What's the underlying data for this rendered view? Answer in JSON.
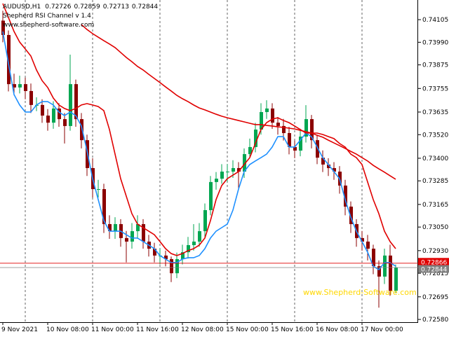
{
  "chart_data": {
    "type": "candlestick",
    "symbol": "AUDUSD,H1",
    "indicator": "Shepherd RSI Channel v 1.4",
    "website": "www.shepherd-software.com",
    "watermark": "www.Shepherd-Software.com",
    "open": [
      0.741,
      0.74027,
      0.73777,
      0.7376,
      0.73777,
      0.73742,
      0.73671,
      0.73671,
      0.73617,
      0.73581,
      0.73653,
      0.73599,
      0.73564,
      0.73777,
      0.73599,
      0.73492,
      0.7335,
      0.73243,
      0.73243,
      0.73065,
      0.73029,
      0.73065,
      0.72994,
      0.72976,
      0.73029,
      0.73065,
      0.72976,
      0.7294,
      0.72905,
      0.72905,
      0.72887,
      0.72815,
      0.72887,
      0.72922,
      0.72958,
      0.72976,
      0.73029,
      0.73136,
      0.73279,
      0.73296,
      0.73332,
      0.73332,
      0.7335,
      0.73332,
      0.73421,
      0.73457,
      0.73546,
      0.73635,
      0.73653,
      0.73581,
      0.73564,
      0.73528,
      0.73457,
      0.73439,
      0.7351,
      0.73599,
      0.73492,
      0.73403,
      0.73368,
      0.7335,
      0.73332,
      0.73261,
      0.73154,
      0.73065,
      0.72994,
      0.72976,
      0.7294,
      0.72851,
      0.72798,
      0.72905,
      0.72726
    ],
    "high": [
      0.7415,
      0.7405,
      0.7383,
      0.7382,
      0.7381,
      0.7378,
      0.7371,
      0.737,
      0.7365,
      0.7369,
      0.7368,
      0.7363,
      0.73927,
      0.738,
      0.7363,
      0.7352,
      0.734,
      0.7329,
      0.7327,
      0.7311,
      0.731,
      0.7309,
      0.7303,
      0.7307,
      0.7311,
      0.7309,
      0.7301,
      0.7297,
      0.7294,
      0.7293,
      0.729,
      0.7292,
      0.7296,
      0.73,
      0.73065,
      0.7307,
      0.7317,
      0.7331,
      0.7333,
      0.7337,
      0.7337,
      0.7339,
      0.7338,
      0.7345,
      0.735,
      0.7358,
      0.7368,
      0.73695,
      0.7368,
      0.7361,
      0.736,
      0.7356,
      0.7349,
      0.7355,
      0.7367,
      0.7362,
      0.7352,
      0.7344,
      0.734,
      0.7338,
      0.7336,
      0.7329,
      0.7318,
      0.7309,
      0.7303,
      0.7301,
      0.7296,
      0.7288,
      0.7294,
      0.7296,
      0.72859
    ],
    "low": [
      0.7399,
      0.7374,
      0.7372,
      0.7373,
      0.737,
      0.7363,
      0.7364,
      0.7358,
      0.7354,
      0.7355,
      0.7356,
      0.73475,
      0.7354,
      0.7356,
      0.7345,
      0.7331,
      0.732,
      0.732,
      0.7302,
      0.7299,
      0.7299,
      0.7295,
      0.7287,
      0.7294,
      0.7299,
      0.7294,
      0.729,
      0.7287,
      0.7286,
      0.7285,
      0.7277,
      0.7279,
      0.7286,
      0.7289,
      0.7293,
      0.7295,
      0.73,
      0.7311,
      0.7324,
      0.7327,
      0.7328,
      0.733,
      0.7324,
      0.733,
      0.734,
      0.7343,
      0.7352,
      0.736,
      0.7355,
      0.7352,
      0.7349,
      0.7342,
      0.734,
      0.7341,
      0.7348,
      0.7345,
      0.7337,
      0.7333,
      0.7331,
      0.7329,
      0.7322,
      0.7311,
      0.7302,
      0.7295,
      0.7293,
      0.7288,
      0.7281,
      0.7264,
      0.7276,
      0.727,
      0.72713
    ],
    "close": [
      0.74027,
      0.73777,
      0.7376,
      0.73777,
      0.73742,
      0.73671,
      0.73671,
      0.73617,
      0.73581,
      0.73653,
      0.73599,
      0.73564,
      0.73777,
      0.73599,
      0.73492,
      0.7335,
      0.73243,
      0.73243,
      0.73065,
      0.73029,
      0.73065,
      0.72994,
      0.72976,
      0.73029,
      0.73065,
      0.72976,
      0.7294,
      0.72905,
      0.72905,
      0.72887,
      0.72815,
      0.72887,
      0.72922,
      0.72958,
      0.72976,
      0.73029,
      0.73136,
      0.73279,
      0.73296,
      0.73332,
      0.73332,
      0.7335,
      0.73332,
      0.73421,
      0.73457,
      0.73546,
      0.73635,
      0.73653,
      0.73581,
      0.73564,
      0.73528,
      0.73457,
      0.73439,
      0.7351,
      0.73599,
      0.73492,
      0.73403,
      0.73368,
      0.7335,
      0.73332,
      0.73261,
      0.73154,
      0.73065,
      0.72994,
      0.72976,
      0.7294,
      0.72851,
      0.72798,
      0.72905,
      0.72726,
      0.72844
    ],
    "up_color": "#00a651",
    "down_color": "#8b0000",
    "lines": [
      {
        "color": "#1e90ff",
        "values": [
          0.74045,
          0.73884,
          0.73724,
          0.73671,
          0.73635,
          0.73635,
          0.73671,
          0.73688,
          0.73688,
          0.73671,
          0.73635,
          0.73617,
          0.73635,
          0.73617,
          0.73564,
          0.73439,
          0.73296,
          0.7319,
          0.73083,
          0.73029,
          0.73029,
          0.73029,
          0.73011,
          0.72994,
          0.72994,
          0.72976,
          0.72958,
          0.7294,
          0.72905,
          0.72887,
          0.72869,
          0.72869,
          0.72887,
          0.72894,
          0.72894,
          0.72905,
          0.7294,
          0.72994,
          0.73029,
          0.73047,
          0.73065,
          0.73136,
          0.73243,
          0.73332,
          0.73368,
          0.73386,
          0.73403,
          0.73421,
          0.73457,
          0.7351,
          0.7351,
          0.73457,
          0.73457,
          0.73492,
          0.73528,
          0.7351,
          0.73457,
          0.73403,
          0.73368,
          0.73332,
          0.73296,
          0.7319,
          0.731,
          0.73029,
          0.72976,
          0.72922,
          0.72851,
          0.72833,
          0.72869,
          0.72869,
          0.72851
        ]
      },
      {
        "color": "#e00000",
        "values": [
          0.74187,
          0.74116,
          0.74045,
          0.73991,
          0.73956,
          0.7392,
          0.73849,
          0.73795,
          0.7376,
          0.73706,
          0.73671,
          0.73653,
          0.73642,
          0.73653,
          0.73671,
          0.73678,
          0.73671,
          0.73663,
          0.73642,
          0.73546,
          0.73421,
          0.73296,
          0.73207,
          0.73118,
          0.73065,
          0.73047,
          0.73029,
          0.73011,
          0.72976,
          0.7294,
          0.72915,
          0.72905,
          0.72915,
          0.7293,
          0.7294,
          0.72958,
          0.72994,
          0.73083,
          0.7319,
          0.73261,
          0.73296,
          0.73314,
          0.73332,
          0.73368,
          0.73403,
          0.73475,
          0.73546,
          0.73581,
          0.73599,
          0.73606,
          0.73592,
          0.73581,
          0.73564,
          0.73546,
          0.73528,
          0.73528,
          0.73528,
          0.73521,
          0.7351,
          0.735,
          0.73475,
          0.73457,
          0.73421,
          0.73403,
          0.73368,
          0.73279,
          0.7319,
          0.73118,
          0.73029,
          0.72976,
          0.7294
        ]
      },
      {
        "color": "#e00000",
        "values": [
          null,
          null,
          null,
          null,
          null,
          null,
          null,
          null,
          null,
          null,
          null,
          null,
          null,
          null,
          0.7408,
          0.74055,
          0.74034,
          0.74016,
          0.73998,
          0.73981,
          0.73963,
          0.73938,
          0.73913,
          0.73891,
          0.73867,
          0.73849,
          0.73827,
          0.73806,
          0.73785,
          0.73763,
          0.73742,
          0.7372,
          0.73703,
          0.73688,
          0.73671,
          0.73656,
          0.73646,
          0.73635,
          0.73624,
          0.73614,
          0.73606,
          0.73599,
          0.73592,
          0.73585,
          0.73578,
          0.73571,
          0.73571,
          0.73567,
          0.73564,
          0.7356,
          0.73557,
          0.73553,
          0.73549,
          0.73542,
          0.73535,
          0.73528,
          0.73517,
          0.73507,
          0.73492,
          0.73478,
          0.73464,
          0.7345,
          0.73435,
          0.73421,
          0.73403,
          0.73386,
          0.73364,
          0.73346,
          0.73329,
          0.73311,
          0.73293
        ]
      }
    ],
    "price_lines": [
      {
        "value": 0.72866,
        "color": "#e00000"
      },
      {
        "value": 0.72844,
        "color": "#808080"
      }
    ],
    "ylim": [
      0.72566,
      0.74205
    ],
    "yticks": [
      0.74105,
      {
        "value": 0.7399,
        "label": "0.73990"
      },
      0.73875,
      0.73755,
      0.73635,
      {
        "value": 0.7352,
        "label": "0.73520"
      },
      {
        "value": 0.734,
        "label": "0.73400"
      },
      0.73285,
      0.73165,
      {
        "value": 0.7305,
        "label": "0.73050"
      },
      {
        "value": 0.7293,
        "label": "0.72930"
      },
      0.72815,
      0.72695,
      {
        "value": 0.7258,
        "label": "0.72580"
      }
    ],
    "xticks": [
      {
        "value": 0,
        "label": "9 Nov 2021"
      },
      {
        "value": 8,
        "label": "10 Nov 08:00"
      },
      {
        "value": 16,
        "label": "11 Nov 00:00"
      },
      {
        "value": 24,
        "label": "11 Nov 16:00"
      },
      {
        "value": 32,
        "label": "12 Nov 08:00"
      },
      {
        "value": 40,
        "label": "15 Nov 00:00"
      },
      {
        "value": 48,
        "label": "15 Nov 16:00"
      },
      {
        "value": 56,
        "label": "16 Nov 08:00"
      },
      {
        "value": 64,
        "label": "17 Nov 00:00"
      }
    ],
    "day_separators": [
      4,
      16,
      28,
      40,
      52,
      64
    ]
  }
}
